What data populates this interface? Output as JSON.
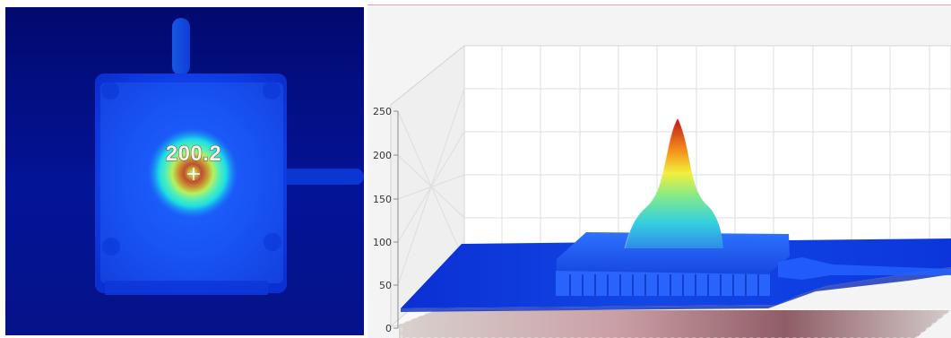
{
  "thermal_view": {
    "max_temperature": "200.2",
    "crosshair_icon": "crosshair-icon"
  },
  "surface_plot": {
    "z_axis": {
      "ticks": [
        "0",
        "50",
        "100",
        "150",
        "200",
        "250"
      ]
    },
    "colors": {
      "low": "#082ac4",
      "mid": "#2bd2df",
      "high": "#ffe600",
      "peak": "#c11218"
    }
  }
}
